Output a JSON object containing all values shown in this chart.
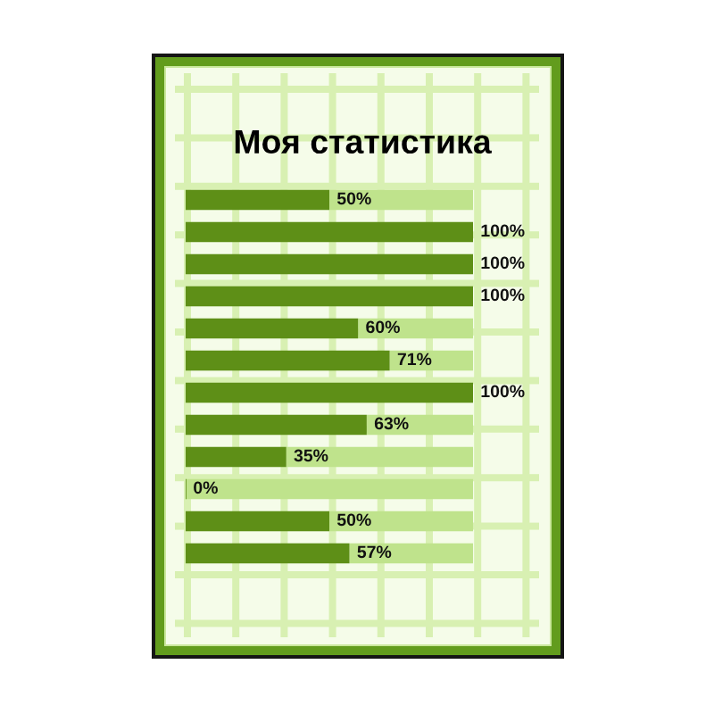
{
  "chart_data": {
    "type": "bar",
    "orientation": "horizontal",
    "stacked": true,
    "title": "Моя статистика",
    "categories": [
      null,
      null,
      null,
      null,
      null,
      null,
      null,
      null,
      null,
      null,
      null,
      null
    ],
    "series": [
      {
        "color": "#5e8f17",
        "values": [
          50,
          100,
          100,
          100,
          60,
          71,
          100,
          63,
          35,
          0,
          50,
          57
        ],
        "value_labels": [
          "50%",
          "100%",
          "100%",
          "100%",
          "60%",
          "71%",
          "100%",
          "63%",
          "35%",
          "0%",
          "50%",
          "57%"
        ]
      },
      {
        "color": "#bfe38c",
        "values": [
          50,
          0,
          0,
          0,
          40,
          29,
          0,
          37,
          65,
          100,
          50,
          43
        ]
      }
    ]
  }
}
